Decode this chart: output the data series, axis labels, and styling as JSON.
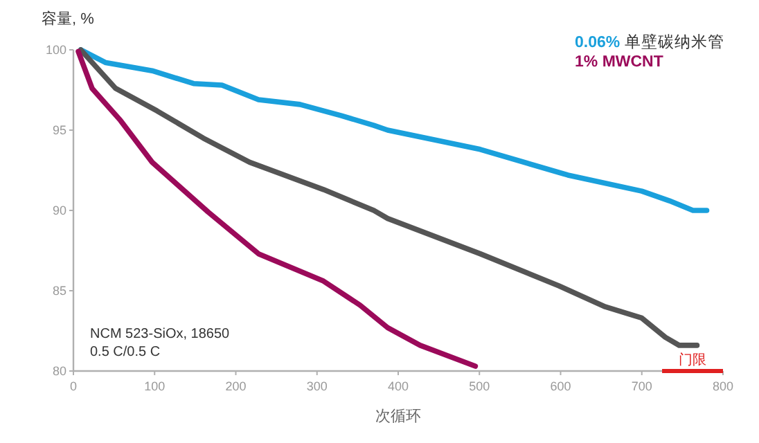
{
  "chart_data": {
    "type": "line",
    "ylabel": "容量, %",
    "xlabel": "次循环",
    "xlim": [
      0,
      800
    ],
    "xticks": [
      0,
      100,
      200,
      300,
      400,
      500,
      600,
      700,
      800
    ],
    "ylim": [
      80,
      100
    ],
    "yticks": [
      80,
      85,
      90,
      95,
      100
    ],
    "grid": false,
    "legend": "top right",
    "marker": "none",
    "line_style": "solid",
    "annotations": [
      "NCM 523-SiOx, 18650",
      "0.5 C/0.5 C"
    ],
    "series": [
      {
        "name": "**0.06%** 单壁碳纳米管",
        "color": "#1aa0dc",
        "x": [
          9,
          40,
          97,
          148,
          183,
          228,
          279,
          330,
          370,
          387,
          501,
          609,
          700,
          734,
          763,
          780
        ],
        "values": [
          100,
          99.2,
          98.7,
          97.9,
          97.8,
          96.9,
          96.6,
          95.9,
          95.3,
          95.0,
          93.8,
          92.2,
          91.2,
          90.6,
          90.0,
          90.0
        ]
      },
      {
        "color": "#555555",
        "x": [
          9,
          52,
          103,
          160,
          217,
          308,
          370,
          387,
          501,
          598,
          655,
          700,
          729,
          746,
          768
        ],
        "values": [
          100,
          97.6,
          96.2,
          94.5,
          93.0,
          91.3,
          90.0,
          89.5,
          87.3,
          85.3,
          84.0,
          83.3,
          82.1,
          81.6,
          81.6
        ]
      },
      {
        "name": "**1% MWCNT**",
        "color": "#9b0a5a",
        "x": [
          6,
          23,
          58,
          97,
          166,
          228,
          308,
          353,
          370,
          387,
          427,
          495
        ],
        "values": [
          99.9,
          97.6,
          95.6,
          93.0,
          89.9,
          87.3,
          85.6,
          84.1,
          83.4,
          82.7,
          81.6,
          80.3
        ]
      },
      {
        "type": "step",
        "name": "门限",
        "color": "#e02020",
        "x": [
          725,
          800
        ],
        "values": [
          80,
          80
        ]
      }
    ]
  }
}
